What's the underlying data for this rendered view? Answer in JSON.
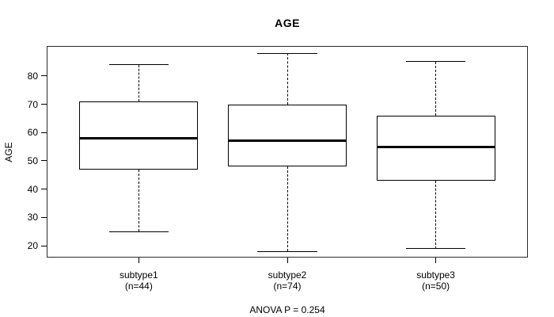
{
  "title": "AGE",
  "footer": "ANOVA P = 0.254",
  "colors": {
    "line": "#000000",
    "background": "#ffffff",
    "frame": "#2b2b2b"
  },
  "chart_data": {
    "type": "boxplot",
    "title": "AGE",
    "xlabel": "",
    "ylabel": "AGE",
    "annotation": "ANOVA P = 0.254",
    "categories": [
      "subtype1",
      "subtype2",
      "subtype3"
    ],
    "category_sublabels": [
      "(n=44)",
      "(n=74)",
      "(n=50)"
    ],
    "yticks": [
      20,
      30,
      40,
      50,
      60,
      70,
      80
    ],
    "ylim": [
      15.8,
      90.6
    ],
    "xlim": [
      0.38,
      3.62
    ],
    "positions": [
      1,
      2,
      3
    ],
    "box_width": 0.8,
    "cap_width": 0.4,
    "grid": false,
    "legend": null,
    "series": [
      {
        "name": "subtype1",
        "n": 44,
        "min": 25,
        "q1": 47,
        "median": 58,
        "q3": 71,
        "max": 84
      },
      {
        "name": "subtype2",
        "n": 74,
        "min": 18,
        "q1": 48,
        "median": 57,
        "q3": 70,
        "max": 88
      },
      {
        "name": "subtype3",
        "n": 50,
        "min": 19,
        "q1": 43,
        "median": 55,
        "q3": 66,
        "max": 85
      }
    ]
  }
}
